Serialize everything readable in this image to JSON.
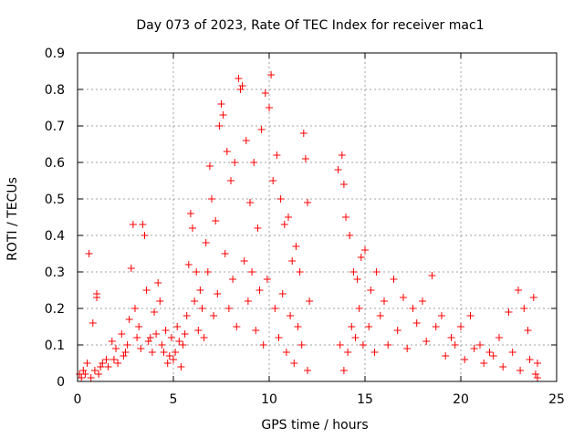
{
  "chart_data": {
    "type": "scatter",
    "title": "Day 073 of 2023, Rate Of TEC Index for receiver mac1",
    "xlabel": "GPS time / hours",
    "ylabel": "ROTI / TECUs",
    "xlim": [
      0,
      25
    ],
    "ylim": [
      0,
      0.9
    ],
    "x_ticks": [
      "0",
      "5",
      "10",
      "15",
      "20",
      "25"
    ],
    "y_ticks": [
      "0",
      "0.1",
      "0.2",
      "0.3",
      "0.4",
      "0.5",
      "0.6",
      "0.7",
      "0.8",
      "0.9"
    ],
    "grid": true,
    "marker": "+",
    "color": "#ff0000",
    "series": [
      {
        "points": [
          [
            0.1,
            0.02
          ],
          [
            0.3,
            0.03
          ],
          [
            0.5,
            0.05
          ],
          [
            0.6,
            0.35
          ],
          [
            0.8,
            0.16
          ],
          [
            1.0,
            0.24
          ],
          [
            1.0,
            0.23
          ],
          [
            1.2,
            0.04
          ],
          [
            1.5,
            0.06
          ],
          [
            1.8,
            0.11
          ],
          [
            2.0,
            0.09
          ],
          [
            2.3,
            0.13
          ],
          [
            2.5,
            0.08
          ],
          [
            2.7,
            0.17
          ],
          [
            2.8,
            0.31
          ],
          [
            2.9,
            0.43
          ],
          [
            3.0,
            0.2
          ],
          [
            3.2,
            0.15
          ],
          [
            3.4,
            0.43
          ],
          [
            3.5,
            0.4
          ],
          [
            3.6,
            0.25
          ],
          [
            3.8,
            0.12
          ],
          [
            4.0,
            0.19
          ],
          [
            4.2,
            0.27
          ],
          [
            4.3,
            0.22
          ],
          [
            4.5,
            0.08
          ],
          [
            4.8,
            0.07
          ],
          [
            5.0,
            0.06
          ],
          [
            5.2,
            0.15
          ],
          [
            5.5,
            0.1
          ],
          [
            5.8,
            0.32
          ],
          [
            5.9,
            0.46
          ],
          [
            6.0,
            0.42
          ],
          [
            6.2,
            0.3
          ],
          [
            6.5,
            0.2
          ],
          [
            6.7,
            0.38
          ],
          [
            6.9,
            0.59
          ],
          [
            7.0,
            0.5
          ],
          [
            7.2,
            0.44
          ],
          [
            7.4,
            0.7
          ],
          [
            7.5,
            0.76
          ],
          [
            7.6,
            0.73
          ],
          [
            7.8,
            0.63
          ],
          [
            8.0,
            0.55
          ],
          [
            8.2,
            0.6
          ],
          [
            8.4,
            0.83
          ],
          [
            8.5,
            0.8
          ],
          [
            8.6,
            0.81
          ],
          [
            8.8,
            0.66
          ],
          [
            9.0,
            0.49
          ],
          [
            9.2,
            0.6
          ],
          [
            9.4,
            0.42
          ],
          [
            9.6,
            0.69
          ],
          [
            9.8,
            0.79
          ],
          [
            10.0,
            0.75
          ],
          [
            10.1,
            0.84
          ],
          [
            10.2,
            0.55
          ],
          [
            10.4,
            0.62
          ],
          [
            10.6,
            0.5
          ],
          [
            10.8,
            0.43
          ],
          [
            11.0,
            0.45
          ],
          [
            11.2,
            0.33
          ],
          [
            11.4,
            0.37
          ],
          [
            11.6,
            0.3
          ],
          [
            11.8,
            0.68
          ],
          [
            11.9,
            0.61
          ],
          [
            12.0,
            0.49
          ],
          [
            12.1,
            0.22
          ],
          [
            13.6,
            0.58
          ],
          [
            13.8,
            0.62
          ],
          [
            13.9,
            0.54
          ],
          [
            14.0,
            0.45
          ],
          [
            14.2,
            0.4
          ],
          [
            14.4,
            0.3
          ],
          [
            14.6,
            0.28
          ],
          [
            14.8,
            0.34
          ],
          [
            15.0,
            0.36
          ],
          [
            15.3,
            0.25
          ],
          [
            15.6,
            0.3
          ],
          [
            16.0,
            0.22
          ],
          [
            16.5,
            0.28
          ],
          [
            17.0,
            0.23
          ],
          [
            17.5,
            0.2
          ],
          [
            18.0,
            0.22
          ],
          [
            18.5,
            0.29
          ],
          [
            19.0,
            0.18
          ],
          [
            19.5,
            0.12
          ],
          [
            20.0,
            0.15
          ],
          [
            20.5,
            0.18
          ],
          [
            21.0,
            0.1
          ],
          [
            21.5,
            0.08
          ],
          [
            22.0,
            0.12
          ],
          [
            22.5,
            0.19
          ],
          [
            23.0,
            0.25
          ],
          [
            23.3,
            0.2
          ],
          [
            23.5,
            0.14
          ],
          [
            23.8,
            0.23
          ],
          [
            24.0,
            0.05
          ],
          [
            0.2,
            0.01
          ],
          [
            0.4,
            0.02
          ],
          [
            0.7,
            0.01
          ],
          [
            0.9,
            0.03
          ],
          [
            1.1,
            0.02
          ],
          [
            1.3,
            0.05
          ],
          [
            1.6,
            0.04
          ],
          [
            1.9,
            0.06
          ],
          [
            2.1,
            0.05
          ],
          [
            2.4,
            0.07
          ],
          [
            2.6,
            0.1
          ],
          [
            3.1,
            0.12
          ],
          [
            3.3,
            0.09
          ],
          [
            3.7,
            0.11
          ],
          [
            3.9,
            0.08
          ],
          [
            4.1,
            0.13
          ],
          [
            4.4,
            0.1
          ],
          [
            4.6,
            0.14
          ],
          [
            4.7,
            0.05
          ],
          [
            4.9,
            0.12
          ],
          [
            5.1,
            0.08
          ],
          [
            5.3,
            0.11
          ],
          [
            5.4,
            0.04
          ],
          [
            5.6,
            0.13
          ],
          [
            5.7,
            0.18
          ],
          [
            6.1,
            0.22
          ],
          [
            6.3,
            0.14
          ],
          [
            6.4,
            0.25
          ],
          [
            6.6,
            0.12
          ],
          [
            6.8,
            0.3
          ],
          [
            7.1,
            0.18
          ],
          [
            7.3,
            0.24
          ],
          [
            7.7,
            0.35
          ],
          [
            7.9,
            0.2
          ],
          [
            8.1,
            0.28
          ],
          [
            8.3,
            0.15
          ],
          [
            8.7,
            0.33
          ],
          [
            8.9,
            0.22
          ],
          [
            9.1,
            0.3
          ],
          [
            9.3,
            0.14
          ],
          [
            9.5,
            0.25
          ],
          [
            9.7,
            0.1
          ],
          [
            9.9,
            0.28
          ],
          [
            10.3,
            0.2
          ],
          [
            10.5,
            0.12
          ],
          [
            10.7,
            0.24
          ],
          [
            10.9,
            0.08
          ],
          [
            11.1,
            0.18
          ],
          [
            11.3,
            0.05
          ],
          [
            11.5,
            0.15
          ],
          [
            11.7,
            0.1
          ],
          [
            12.0,
            0.03
          ],
          [
            13.7,
            0.1
          ],
          [
            13.9,
            0.03
          ],
          [
            14.1,
            0.08
          ],
          [
            14.3,
            0.15
          ],
          [
            14.5,
            0.12
          ],
          [
            14.7,
            0.2
          ],
          [
            14.9,
            0.1
          ],
          [
            15.2,
            0.15
          ],
          [
            15.5,
            0.08
          ],
          [
            15.8,
            0.18
          ],
          [
            16.2,
            0.1
          ],
          [
            16.7,
            0.14
          ],
          [
            17.2,
            0.09
          ],
          [
            17.7,
            0.16
          ],
          [
            18.2,
            0.11
          ],
          [
            18.7,
            0.15
          ],
          [
            19.2,
            0.07
          ],
          [
            19.7,
            0.1
          ],
          [
            20.2,
            0.06
          ],
          [
            20.7,
            0.09
          ],
          [
            21.2,
            0.05
          ],
          [
            21.7,
            0.07
          ],
          [
            22.2,
            0.04
          ],
          [
            22.7,
            0.08
          ],
          [
            23.1,
            0.03
          ],
          [
            23.6,
            0.06
          ],
          [
            23.9,
            0.02
          ],
          [
            24.0,
            0.01
          ]
        ]
      }
    ]
  }
}
